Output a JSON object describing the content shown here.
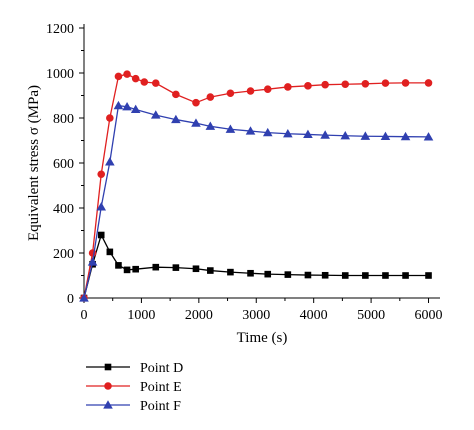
{
  "chart_data": {
    "type": "line",
    "title": "",
    "xlabel": "Time (s)",
    "ylabel": "Equivalent stress σ (MPa)",
    "xlim": [
      0,
      6200
    ],
    "ylim": [
      0,
      1200
    ],
    "x_ticks": [
      0,
      1000,
      2000,
      3000,
      4000,
      5000,
      6000
    ],
    "y_ticks": [
      0,
      200,
      400,
      600,
      800,
      1000,
      1200
    ],
    "grid": false,
    "legend_position": "bottom-left",
    "series": [
      {
        "name": "Point D",
        "color": "#000000",
        "marker": "square",
        "x": [
          0,
          150,
          300,
          450,
          600,
          750,
          900,
          1250,
          1600,
          1950,
          2200,
          2550,
          2900,
          3200,
          3550,
          3900,
          4200,
          4550,
          4900,
          5250,
          5600,
          6000
        ],
        "y": [
          0,
          150,
          280,
          205,
          145,
          125,
          128,
          137,
          135,
          130,
          122,
          115,
          110,
          106,
          104,
          102,
          101,
          100,
          100,
          100,
          100,
          100
        ]
      },
      {
        "name": "Point E",
        "color": "#e02020",
        "marker": "circle",
        "x": [
          0,
          150,
          300,
          450,
          600,
          750,
          900,
          1050,
          1250,
          1600,
          1950,
          2200,
          2550,
          2900,
          3200,
          3550,
          3900,
          4200,
          4550,
          4900,
          5250,
          5600,
          6000
        ],
        "y": [
          0,
          200,
          550,
          800,
          985,
          995,
          975,
          960,
          955,
          905,
          868,
          893,
          910,
          920,
          928,
          938,
          943,
          948,
          950,
          952,
          955,
          956,
          956
        ]
      },
      {
        "name": "Point F",
        "color": "#3040b0",
        "marker": "triangle",
        "x": [
          0,
          150,
          300,
          450,
          600,
          750,
          900,
          1250,
          1600,
          1950,
          2200,
          2550,
          2900,
          3200,
          3550,
          3900,
          4200,
          4550,
          4900,
          5250,
          5600,
          6000
        ],
        "y": [
          0,
          160,
          405,
          605,
          855,
          850,
          838,
          813,
          793,
          777,
          763,
          750,
          742,
          735,
          730,
          727,
          724,
          721,
          719,
          718,
          717,
          716
        ]
      }
    ]
  }
}
